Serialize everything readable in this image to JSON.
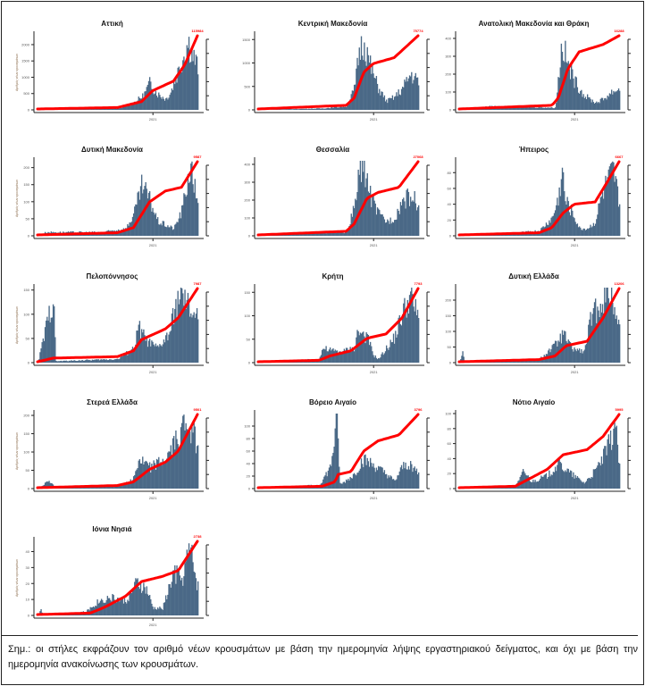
{
  "note": "Σημ.:  οι στήλες εκφράζουν τον αριθμό νέων κρουσμάτων με βάση την ημερομηνία λήψης εργαστηριακού δείγματος, και όχι με βάση την ημερομηνία ανακοίνωσης των κρουσμάτων.",
  "colors": {
    "bars": "#4a6987",
    "line": "#ff0000",
    "axis": "#222222"
  },
  "chart_data": [
    {
      "type": "bar+line",
      "title": "Αττική",
      "ylabel": "Αριθμός νέων κρουσμάτων",
      "xtick": "2021",
      "yticks": [
        0,
        500,
        1000,
        1500,
        2000
      ],
      "ymax": 2300,
      "end_label": "115984",
      "mid_labels": [
        "54821",
        "82"
      ],
      "bars_profile": [
        [
          0.0,
          0
        ],
        [
          0.5,
          0.02
        ],
        [
          0.55,
          0.05
        ],
        [
          0.6,
          0.1
        ],
        [
          0.66,
          0.2
        ],
        [
          0.7,
          0.38
        ],
        [
          0.72,
          0.3
        ],
        [
          0.75,
          0.22
        ],
        [
          0.8,
          0.15
        ],
        [
          0.83,
          0.25
        ],
        [
          0.87,
          0.5
        ],
        [
          0.9,
          0.7
        ],
        [
          0.94,
          0.95
        ],
        [
          0.97,
          0.75
        ],
        [
          1.0,
          0.6
        ]
      ],
      "line_profile": [
        [
          0,
          0
        ],
        [
          0.5,
          0.02
        ],
        [
          0.65,
          0.1
        ],
        [
          0.72,
          0.25
        ],
        [
          0.85,
          0.38
        ],
        [
          0.92,
          0.6
        ],
        [
          1,
          1
        ]
      ]
    },
    {
      "type": "bar+line",
      "title": "Κεντρική Μακεδονία",
      "xtick": "2021",
      "yticks": [
        0,
        500,
        1000,
        1500
      ],
      "ymax": 1600,
      "end_label": "75774",
      "mid_labels": [
        "30",
        "11105"
      ],
      "bars_profile": [
        [
          0,
          0
        ],
        [
          0.4,
          0.02
        ],
        [
          0.55,
          0.05
        ],
        [
          0.6,
          0.3
        ],
        [
          0.63,
          0.85
        ],
        [
          0.66,
          0.95
        ],
        [
          0.7,
          0.6
        ],
        [
          0.75,
          0.3
        ],
        [
          0.8,
          0.12
        ],
        [
          0.85,
          0.18
        ],
        [
          0.9,
          0.3
        ],
        [
          0.95,
          0.5
        ],
        [
          1,
          0.4
        ]
      ],
      "line_profile": [
        [
          0,
          0
        ],
        [
          0.55,
          0.05
        ],
        [
          0.6,
          0.15
        ],
        [
          0.66,
          0.5
        ],
        [
          0.72,
          0.62
        ],
        [
          0.85,
          0.7
        ],
        [
          1,
          1
        ]
      ]
    },
    {
      "type": "bar+line",
      "title": "Ανατολική Μακεδονία και Θράκη",
      "xtick": "2021",
      "yticks": [
        0,
        100,
        200,
        300,
        400
      ],
      "ymax": 420,
      "end_label": "16288",
      "mid_labels": [
        "8735",
        "4120"
      ],
      "bars_profile": [
        [
          0,
          0
        ],
        [
          0.2,
          0.05
        ],
        [
          0.6,
          0.03
        ],
        [
          0.62,
          0.5
        ],
        [
          0.64,
          0.95
        ],
        [
          0.68,
          0.6
        ],
        [
          0.72,
          0.4
        ],
        [
          0.78,
          0.2
        ],
        [
          0.85,
          0.1
        ],
        [
          0.9,
          0.15
        ],
        [
          0.95,
          0.25
        ],
        [
          1,
          0.3
        ]
      ],
      "line_profile": [
        [
          0,
          0
        ],
        [
          0.58,
          0.05
        ],
        [
          0.62,
          0.15
        ],
        [
          0.68,
          0.55
        ],
        [
          0.75,
          0.78
        ],
        [
          0.9,
          0.88
        ],
        [
          1,
          1
        ]
      ]
    },
    {
      "type": "bar+line",
      "title": "Δυτική Μακεδονία",
      "ylabel": "Αριθμός νέων κρουσμάτων",
      "xtick": "2021",
      "yticks": [
        0,
        50,
        100,
        150,
        200
      ],
      "ymax": 220,
      "end_label": "9587",
      "mid_labels": [
        "5484",
        "3593"
      ],
      "bars_profile": [
        [
          0,
          0
        ],
        [
          0.05,
          0.05
        ],
        [
          0.4,
          0.05
        ],
        [
          0.55,
          0.1
        ],
        [
          0.6,
          0.3
        ],
        [
          0.65,
          0.7
        ],
        [
          0.7,
          0.5
        ],
        [
          0.75,
          0.2
        ],
        [
          0.85,
          0.1
        ],
        [
          0.9,
          0.35
        ],
        [
          0.95,
          0.95
        ],
        [
          1,
          0.5
        ]
      ],
      "line_profile": [
        [
          0,
          0
        ],
        [
          0.5,
          0.03
        ],
        [
          0.6,
          0.1
        ],
        [
          0.7,
          0.45
        ],
        [
          0.8,
          0.6
        ],
        [
          0.9,
          0.65
        ],
        [
          1,
          1
        ]
      ]
    },
    {
      "type": "bar+line",
      "title": "Θεσσαλία",
      "xtick": "2021",
      "yticks": [
        0,
        100,
        200,
        300,
        400
      ],
      "ymax": 420,
      "end_label": "27068",
      "mid_labels": [
        "13209",
        "9270"
      ],
      "bars_profile": [
        [
          0,
          0
        ],
        [
          0.15,
          0.03
        ],
        [
          0.55,
          0.05
        ],
        [
          0.6,
          0.4
        ],
        [
          0.63,
          0.9
        ],
        [
          0.66,
          0.98
        ],
        [
          0.7,
          0.55
        ],
        [
          0.75,
          0.3
        ],
        [
          0.8,
          0.2
        ],
        [
          0.85,
          0.25
        ],
        [
          0.9,
          0.5
        ],
        [
          0.95,
          0.55
        ],
        [
          1,
          0.45
        ]
      ],
      "line_profile": [
        [
          0,
          0
        ],
        [
          0.55,
          0.05
        ],
        [
          0.6,
          0.15
        ],
        [
          0.68,
          0.5
        ],
        [
          0.75,
          0.58
        ],
        [
          0.88,
          0.65
        ],
        [
          1,
          1
        ]
      ]
    },
    {
      "type": "bar+line",
      "title": "Ήπειρος",
      "xtick": "2021",
      "yticks": [
        0,
        20,
        40,
        60,
        80
      ],
      "ymax": 95,
      "end_label": "6667",
      "mid_labels": [
        "2362",
        "1172"
      ],
      "bars_profile": [
        [
          0,
          0
        ],
        [
          0.3,
          0.03
        ],
        [
          0.5,
          0.07
        ],
        [
          0.58,
          0.25
        ],
        [
          0.62,
          0.55
        ],
        [
          0.64,
          0.95
        ],
        [
          0.66,
          0.5
        ],
        [
          0.7,
          0.35
        ],
        [
          0.75,
          0.1
        ],
        [
          0.8,
          0.1
        ],
        [
          0.85,
          0.2
        ],
        [
          0.88,
          0.5
        ],
        [
          0.92,
          0.75
        ],
        [
          0.96,
          0.9
        ],
        [
          1,
          0.45
        ]
      ],
      "line_profile": [
        [
          0,
          0
        ],
        [
          0.5,
          0.03
        ],
        [
          0.58,
          0.1
        ],
        [
          0.65,
          0.3
        ],
        [
          0.72,
          0.42
        ],
        [
          0.85,
          0.45
        ],
        [
          0.92,
          0.7
        ],
        [
          1,
          1
        ]
      ]
    },
    {
      "type": "bar+line",
      "title": "Πελοπόννησος",
      "ylabel": "Αριθμός νέων κρουσμάτων",
      "xtick": "2021",
      "yticks": [
        0,
        50,
        100,
        150
      ],
      "ymax": 155,
      "end_label": "7987",
      "mid_labels": [
        "3913",
        "3"
      ],
      "bars_profile": [
        [
          0,
          0
        ],
        [
          0.1,
          0.97
        ],
        [
          0.11,
          0.02
        ],
        [
          0.5,
          0.05
        ],
        [
          0.6,
          0.2
        ],
        [
          0.63,
          0.5
        ],
        [
          0.68,
          0.3
        ],
        [
          0.75,
          0.2
        ],
        [
          0.82,
          0.4
        ],
        [
          0.88,
          0.95
        ],
        [
          0.93,
          0.8
        ],
        [
          0.97,
          0.7
        ],
        [
          1,
          0.6
        ]
      ],
      "line_profile": [
        [
          0,
          0
        ],
        [
          0.1,
          0.05
        ],
        [
          0.5,
          0.07
        ],
        [
          0.6,
          0.15
        ],
        [
          0.65,
          0.3
        ],
        [
          0.8,
          0.45
        ],
        [
          0.88,
          0.6
        ],
        [
          1,
          1
        ]
      ]
    },
    {
      "type": "bar+line",
      "title": "Κρήτη",
      "xtick": "2021",
      "yticks": [
        0,
        50,
        100,
        150
      ],
      "ymax": 160,
      "end_label": "7793",
      "mid_labels": [
        "3808",
        "1751"
      ],
      "bars_profile": [
        [
          0,
          0
        ],
        [
          0.38,
          0.05
        ],
        [
          0.4,
          0.2
        ],
        [
          0.5,
          0.15
        ],
        [
          0.6,
          0.2
        ],
        [
          0.62,
          0.45
        ],
        [
          0.68,
          0.35
        ],
        [
          0.72,
          0.1
        ],
        [
          0.75,
          0.05
        ],
        [
          0.8,
          0.2
        ],
        [
          0.85,
          0.35
        ],
        [
          0.9,
          0.7
        ],
        [
          0.95,
          0.95
        ],
        [
          1,
          0.6
        ]
      ],
      "line_profile": [
        [
          0,
          0
        ],
        [
          0.38,
          0.02
        ],
        [
          0.45,
          0.08
        ],
        [
          0.58,
          0.15
        ],
        [
          0.68,
          0.32
        ],
        [
          0.8,
          0.38
        ],
        [
          0.9,
          0.6
        ],
        [
          1,
          1
        ]
      ]
    },
    {
      "type": "bar+line",
      "title": "Δυτική Ελλάδα",
      "xtick": "2021",
      "yticks": [
        0,
        50,
        100,
        150,
        200
      ],
      "ymax": 240,
      "end_label": "13206",
      "mid_labels": [
        "3326",
        "8"
      ],
      "bars_profile": [
        [
          0,
          0
        ],
        [
          0.02,
          0.18
        ],
        [
          0.03,
          0
        ],
        [
          0.5,
          0.05
        ],
        [
          0.6,
          0.25
        ],
        [
          0.65,
          0.4
        ],
        [
          0.7,
          0.2
        ],
        [
          0.78,
          0.15
        ],
        [
          0.82,
          0.6
        ],
        [
          0.88,
          0.85
        ],
        [
          0.93,
          0.95
        ],
        [
          0.97,
          0.8
        ],
        [
          1,
          0.5
        ]
      ],
      "line_profile": [
        [
          0,
          0
        ],
        [
          0.5,
          0.03
        ],
        [
          0.6,
          0.08
        ],
        [
          0.67,
          0.22
        ],
        [
          0.8,
          0.28
        ],
        [
          0.9,
          0.6
        ],
        [
          1,
          1
        ]
      ]
    },
    {
      "type": "bar+line",
      "title": "Στερεά Ελλάδα",
      "ylabel": "Αριθμός νέων κρουσμάτων",
      "xtick": "2021",
      "yticks": [
        0,
        50,
        100,
        150,
        200
      ],
      "ymax": 205,
      "end_label": "9501",
      "mid_labels": [
        "3421",
        "6"
      ],
      "bars_profile": [
        [
          0,
          0
        ],
        [
          0.07,
          0.12
        ],
        [
          0.1,
          0.03
        ],
        [
          0.5,
          0.03
        ],
        [
          0.6,
          0.15
        ],
        [
          0.63,
          0.4
        ],
        [
          0.7,
          0.3
        ],
        [
          0.8,
          0.4
        ],
        [
          0.88,
          0.75
        ],
        [
          0.93,
          0.95
        ],
        [
          0.97,
          0.8
        ],
        [
          1,
          0.55
        ]
      ],
      "line_profile": [
        [
          0,
          0
        ],
        [
          0.5,
          0.03
        ],
        [
          0.6,
          0.08
        ],
        [
          0.7,
          0.25
        ],
        [
          0.8,
          0.35
        ],
        [
          0.88,
          0.5
        ],
        [
          1,
          1
        ]
      ]
    },
    {
      "type": "bar+line",
      "title": "Βόρειο Αιγαίο",
      "xtick": "2021",
      "yticks": [
        0,
        20,
        40,
        60,
        80,
        100
      ],
      "ymax": 120,
      "end_label": "3796",
      "mid_labels": [
        "1822",
        "8"
      ],
      "bars_profile": [
        [
          0,
          0
        ],
        [
          0.38,
          0.05
        ],
        [
          0.45,
          0.3
        ],
        [
          0.49,
          0.95
        ],
        [
          0.51,
          0.05
        ],
        [
          0.6,
          0.2
        ],
        [
          0.65,
          0.4
        ],
        [
          0.7,
          0.35
        ],
        [
          0.8,
          0.2
        ],
        [
          0.85,
          0.1
        ],
        [
          0.9,
          0.3
        ],
        [
          0.95,
          0.35
        ],
        [
          1,
          0.2
        ]
      ],
      "line_profile": [
        [
          0,
          0
        ],
        [
          0.4,
          0.02
        ],
        [
          0.48,
          0.08
        ],
        [
          0.5,
          0.18
        ],
        [
          0.58,
          0.22
        ],
        [
          0.66,
          0.5
        ],
        [
          0.75,
          0.64
        ],
        [
          0.88,
          0.72
        ],
        [
          1,
          1
        ]
      ]
    },
    {
      "type": "bar+line",
      "title": "Νότιο Αιγαίο",
      "xtick": "2021",
      "yticks": [
        0,
        20,
        40,
        60,
        80,
        100
      ],
      "ymax": 100,
      "end_label": "5995",
      "mid_labels": [
        "3995",
        "1854"
      ],
      "bars_profile": [
        [
          0,
          0
        ],
        [
          0.35,
          0.03
        ],
        [
          0.38,
          0.15
        ],
        [
          0.4,
          0.25
        ],
        [
          0.45,
          0.1
        ],
        [
          0.55,
          0.18
        ],
        [
          0.62,
          0.35
        ],
        [
          0.7,
          0.2
        ],
        [
          0.78,
          0.08
        ],
        [
          0.85,
          0.25
        ],
        [
          0.9,
          0.45
        ],
        [
          0.95,
          0.7
        ],
        [
          0.97,
          0.95
        ],
        [
          1,
          0.3
        ]
      ],
      "line_profile": [
        [
          0,
          0
        ],
        [
          0.35,
          0.02
        ],
        [
          0.42,
          0.1
        ],
        [
          0.55,
          0.25
        ],
        [
          0.65,
          0.45
        ],
        [
          0.8,
          0.52
        ],
        [
          0.9,
          0.7
        ],
        [
          1,
          1
        ]
      ]
    },
    {
      "type": "bar+line",
      "title": "Ιόνια Νησιά",
      "ylabel": "Αριθμός νέων κρουσμάτων",
      "xtick": "2021",
      "yticks": [
        0,
        10,
        20,
        30,
        40
      ],
      "ymax": 47,
      "end_label": "2738",
      "mid_labels": [
        "1455",
        "7"
      ],
      "bars_profile": [
        [
          0,
          0
        ],
        [
          0.02,
          0.08
        ],
        [
          0.03,
          0
        ],
        [
          0.3,
          0.05
        ],
        [
          0.38,
          0.2
        ],
        [
          0.45,
          0.25
        ],
        [
          0.55,
          0.2
        ],
        [
          0.62,
          0.45
        ],
        [
          0.68,
          0.35
        ],
        [
          0.72,
          0.1
        ],
        [
          0.78,
          0.1
        ],
        [
          0.85,
          0.6
        ],
        [
          0.9,
          0.5
        ],
        [
          0.95,
          0.95
        ],
        [
          1,
          0.4
        ]
      ],
      "line_profile": [
        [
          0,
          0
        ],
        [
          0.33,
          0.02
        ],
        [
          0.42,
          0.1
        ],
        [
          0.55,
          0.25
        ],
        [
          0.65,
          0.45
        ],
        [
          0.78,
          0.52
        ],
        [
          0.88,
          0.6
        ],
        [
          1,
          1
        ]
      ]
    }
  ]
}
